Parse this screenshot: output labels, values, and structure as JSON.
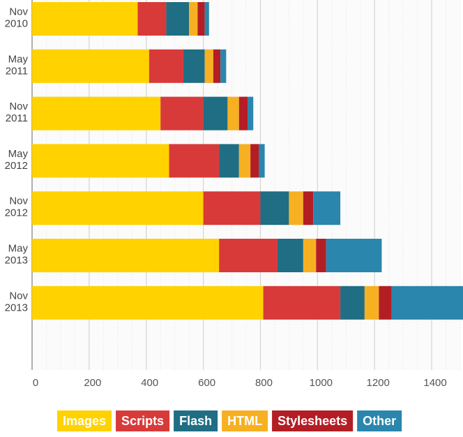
{
  "chart_data": {
    "type": "bar",
    "orientation": "horizontal",
    "stacked": true,
    "categories": [
      [
        "Nov",
        "2010"
      ],
      [
        "May",
        "2011"
      ],
      [
        "Nov",
        "2011"
      ],
      [
        "May",
        "2012"
      ],
      [
        "Nov",
        "2012"
      ],
      [
        "May",
        "2013"
      ],
      [
        "Nov",
        "2013"
      ]
    ],
    "series": [
      {
        "name": "Images",
        "color": "#ffd200",
        "values": [
          370,
          410,
          450,
          480,
          600,
          655,
          810
        ]
      },
      {
        "name": "Scripts",
        "color": "#d83a3a",
        "values": [
          100,
          120,
          150,
          175,
          200,
          205,
          270
        ]
      },
      {
        "name": "Flash",
        "color": "#1f6e84",
        "values": [
          80,
          75,
          85,
          70,
          100,
          90,
          85
        ]
      },
      {
        "name": "HTML",
        "color": "#f7b022",
        "values": [
          30,
          30,
          40,
          40,
          50,
          45,
          50
        ]
      },
      {
        "name": "Stylesheets",
        "color": "#b31e25",
        "values": [
          25,
          25,
          30,
          30,
          35,
          35,
          45
        ]
      },
      {
        "name": "Other",
        "color": "#2a86ad",
        "values": [
          15,
          20,
          20,
          20,
          95,
          195,
          265
        ]
      }
    ],
    "xlim": [
      0,
      1500
    ],
    "xticks": [
      0,
      200,
      400,
      600,
      800,
      1000,
      1200,
      1400
    ],
    "title": "",
    "xlabel": "",
    "ylabel": "",
    "grid": true,
    "legend_position": "bottom"
  }
}
